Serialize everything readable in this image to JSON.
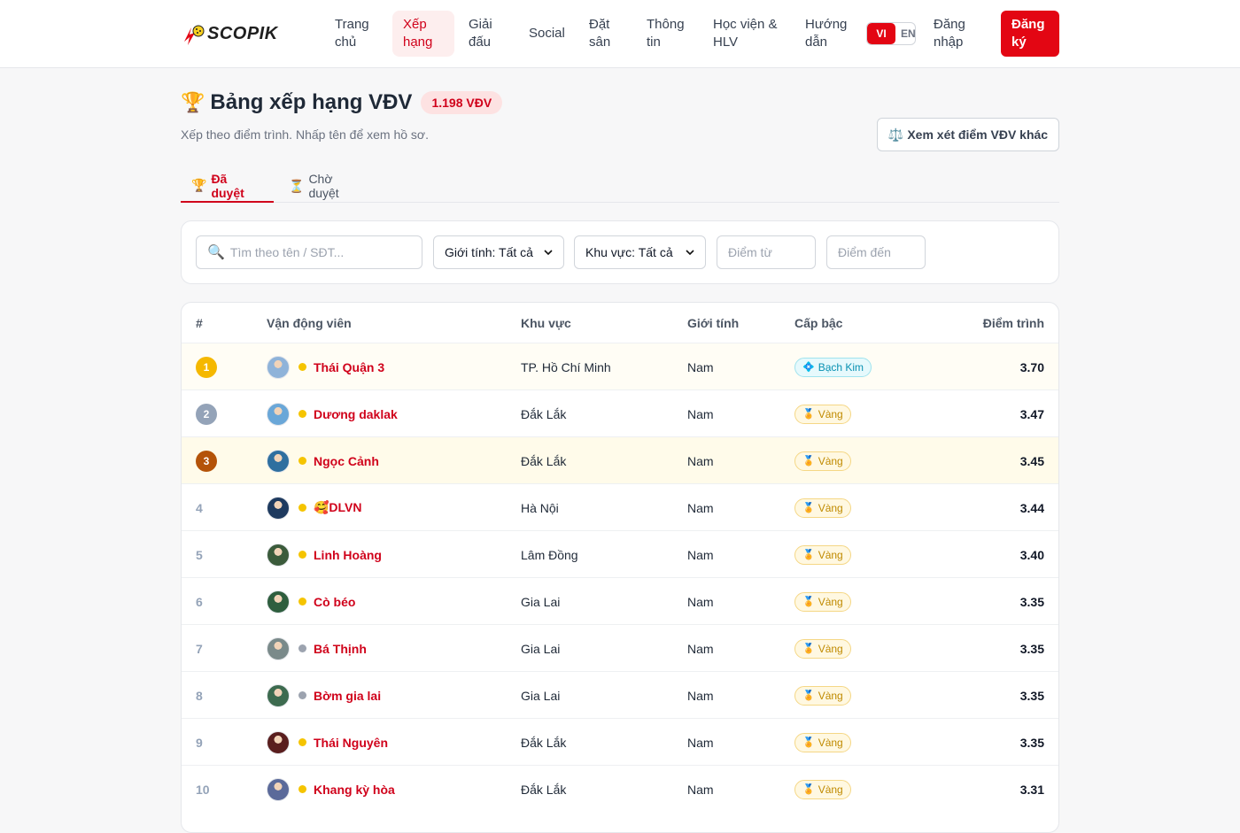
{
  "brand": {
    "name": "SCOPIK"
  },
  "nav": {
    "items": [
      {
        "label": "Trang chủ",
        "active": false
      },
      {
        "label": "Xếp hạng",
        "active": true
      },
      {
        "label": "Giải đấu",
        "active": false
      },
      {
        "label": "Social",
        "active": false
      },
      {
        "label": "Đặt sân",
        "active": false
      },
      {
        "label": "Thông tin",
        "active": false
      },
      {
        "label": "Học viện & HLV",
        "active": false
      },
      {
        "label": "Hướng dẫn",
        "active": false
      }
    ],
    "lang_vi": "VI",
    "lang_en": "EN",
    "login": "Đăng nhập",
    "signup": "Đăng ký"
  },
  "page": {
    "title": "Bảng xếp hạng VĐV",
    "count_badge": "1.198 VĐV",
    "subtitle": "Xếp theo điểm trình. Nhấp tên để xem hồ sơ.",
    "compare_button": "Xem xét điểm VĐV khác"
  },
  "tabs": [
    {
      "label": "Đã duyệt",
      "icon": "trophy-icon",
      "active": true
    },
    {
      "label": "Chờ duyệt",
      "icon": "hourglass-icon",
      "active": false
    }
  ],
  "filters": {
    "search_placeholder": "Tìm theo tên / SĐT...",
    "gender_value": "Giới tính: Tất cả",
    "region_value": "Khu vực: Tất cả",
    "score_from_placeholder": "Điểm từ",
    "score_to_placeholder": "Điểm đến"
  },
  "table": {
    "headers": [
      "#",
      "Vận động viên",
      "Khu vực",
      "Giới tính",
      "Cấp bậc",
      "Điểm trình"
    ],
    "rows": [
      {
        "rank": "1",
        "name": "Thái Quận 3",
        "region": "TP. Hồ Chí Minh",
        "gender": "Nam",
        "tier": "Bạch Kim",
        "score": "3.70",
        "online": true
      },
      {
        "rank": "2",
        "name": "Dương daklak",
        "region": "Đắk Lắk",
        "gender": "Nam",
        "tier": "Vàng",
        "score": "3.47",
        "online": true
      },
      {
        "rank": "3",
        "name": "Ngọc Cảnh",
        "region": "Đắk Lắk",
        "gender": "Nam",
        "tier": "Vàng",
        "score": "3.45",
        "online": true
      },
      {
        "rank": "4",
        "name": "🥰DLVN",
        "region": "Hà Nội",
        "gender": "Nam",
        "tier": "Vàng",
        "score": "3.44",
        "online": true
      },
      {
        "rank": "5",
        "name": "Linh Hoàng",
        "region": "Lâm Đồng",
        "gender": "Nam",
        "tier": "Vàng",
        "score": "3.40",
        "online": true
      },
      {
        "rank": "6",
        "name": "Cò béo",
        "region": "Gia Lai",
        "gender": "Nam",
        "tier": "Vàng",
        "score": "3.35",
        "online": true
      },
      {
        "rank": "7",
        "name": "Bá Thịnh",
        "region": "Gia Lai",
        "gender": "Nam",
        "tier": "Vàng",
        "score": "3.35",
        "online": false
      },
      {
        "rank": "8",
        "name": "Bờm gia lai",
        "region": "Gia Lai",
        "gender": "Nam",
        "tier": "Vàng",
        "score": "3.35",
        "online": false
      },
      {
        "rank": "9",
        "name": "Thái Nguyên",
        "region": "Đắk Lắk",
        "gender": "Nam",
        "tier": "Vàng",
        "score": "3.35",
        "online": true
      },
      {
        "rank": "10",
        "name": "Khang kỳ hòa",
        "region": "Đắk Lắk",
        "gender": "Nam",
        "tier": "Vàng",
        "score": "3.31",
        "online": true
      }
    ]
  },
  "colors": {
    "accent": "#d0021b",
    "rank1": "#f5b800",
    "rank2": "#94a3b8",
    "rank3": "#b45309",
    "online_dot": "#f5c400",
    "offline_dot": "#9ca3af"
  }
}
